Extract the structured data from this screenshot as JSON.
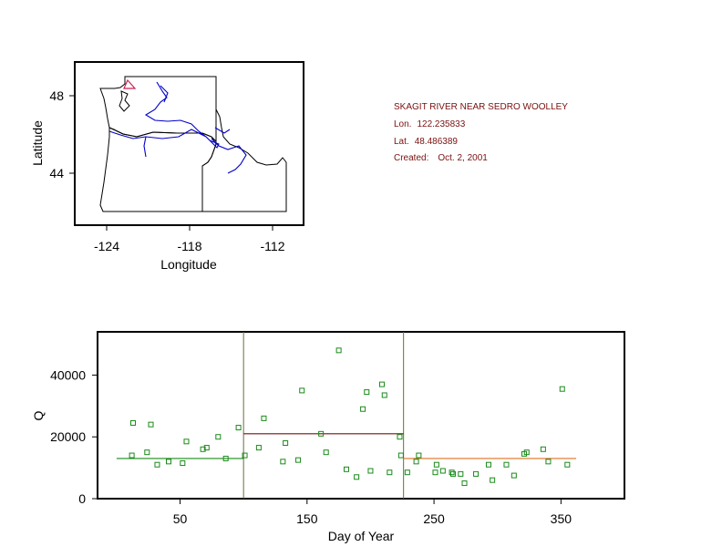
{
  "info": {
    "station": "SKAGIT RIVER NEAR SEDRO WOOLLEY",
    "lon_label": "Lon.",
    "lon_value": "122.235833",
    "lat_label": "Lat.",
    "lat_value": "48.486389",
    "created_label": "Created:",
    "created_value": "Oct. 2, 2001"
  },
  "colors": {
    "points": "#1a8a1a",
    "rivers": "#0000cc",
    "site_marker": "#cc2255",
    "segment_1": "#1a8a1a",
    "segment_2": "#7a1010",
    "segment_3": "#e07020",
    "breaks": "#6b6b40"
  },
  "chart_data": [
    {
      "type": "map",
      "xlabel": "Longitude",
      "ylabel": "Latitude",
      "x_ticks": [
        "-124",
        "-118",
        "-112"
      ],
      "y_ticks": [
        "48",
        "44"
      ],
      "site": {
        "lon": -122.235833,
        "lat": 48.486389
      }
    },
    {
      "type": "scatter",
      "xlabel": "Day of Year",
      "ylabel": "Q",
      "xlim": [
        -15,
        400
      ],
      "ylim": [
        0,
        54000
      ],
      "x_ticks": [
        "50",
        "150",
        "250",
        "350"
      ],
      "y_ticks": [
        "0",
        "20000",
        "40000"
      ],
      "points": [
        [
          12,
          14000
        ],
        [
          13,
          24500
        ],
        [
          24,
          15000
        ],
        [
          27,
          24000
        ],
        [
          32,
          11000
        ],
        [
          41,
          12000
        ],
        [
          52,
          11500
        ],
        [
          55,
          18500
        ],
        [
          68,
          16000
        ],
        [
          71,
          16500
        ],
        [
          80,
          20000
        ],
        [
          86,
          13000
        ],
        [
          96,
          23000
        ],
        [
          101,
          14000
        ],
        [
          112,
          16500
        ],
        [
          116,
          26000
        ],
        [
          131,
          12000
        ],
        [
          133,
          18000
        ],
        [
          143,
          12500
        ],
        [
          146,
          35000
        ],
        [
          161,
          21000
        ],
        [
          165,
          15000
        ],
        [
          175,
          48000
        ],
        [
          181,
          9500
        ],
        [
          189,
          7000
        ],
        [
          194,
          29000
        ],
        [
          197,
          34500
        ],
        [
          200,
          9000
        ],
        [
          209,
          37000
        ],
        [
          211,
          33500
        ],
        [
          215,
          8500
        ],
        [
          223,
          20000
        ],
        [
          224,
          14000
        ],
        [
          229,
          8500
        ],
        [
          236,
          12000
        ],
        [
          238,
          14000
        ],
        [
          251,
          8500
        ],
        [
          252,
          11000
        ],
        [
          257,
          9000
        ],
        [
          264,
          8500
        ],
        [
          265,
          8000
        ],
        [
          271,
          8000
        ],
        [
          274,
          5000
        ],
        [
          283,
          8000
        ],
        [
          293,
          11000
        ],
        [
          296,
          6000
        ],
        [
          307,
          11000
        ],
        [
          313,
          7500
        ],
        [
          321,
          14500
        ],
        [
          323,
          15000
        ],
        [
          336,
          16000
        ],
        [
          340,
          12000
        ],
        [
          351,
          35500
        ],
        [
          355,
          11000
        ]
      ],
      "breakpoints": [
        100,
        226
      ],
      "segments": [
        {
          "x0": 0,
          "x1": 100,
          "y": 13000
        },
        {
          "x0": 100,
          "x1": 226,
          "y": 21000
        },
        {
          "x0": 226,
          "x1": 362,
          "y": 13000
        }
      ]
    }
  ]
}
